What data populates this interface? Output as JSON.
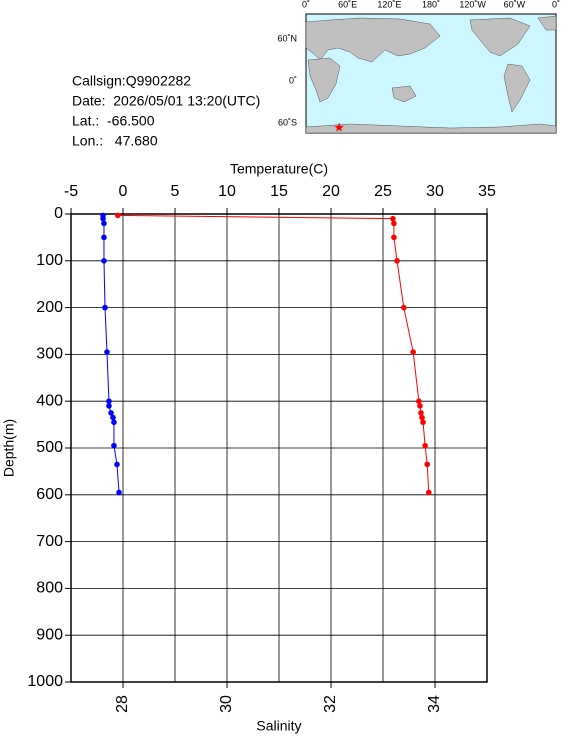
{
  "chart_data": {
    "type": "profile",
    "info": [
      "Callsign:Q9902282",
      "Date:  2026/05/01 13:20(UTC)",
      "Lat.:  -66.500",
      "Lon.:   47.680"
    ],
    "x_label": "Temperature(C)",
    "x2_label": "Salinity",
    "y_label": "Depth(m)",
    "xlim": [
      -5,
      35
    ],
    "xticks": [
      -5,
      0,
      5,
      10,
      15,
      20,
      25,
      30,
      35
    ],
    "x2lim": [
      27,
      35
    ],
    "x2ticks": [
      28,
      30,
      32,
      34
    ],
    "ylim": [
      0,
      1000
    ],
    "yticks": [
      0,
      100,
      200,
      300,
      400,
      500,
      600,
      700,
      800,
      900,
      1000
    ],
    "grid": true,
    "depth": [
      3,
      10,
      20,
      50,
      100,
      200,
      295,
      400,
      410,
      425,
      435,
      445,
      495,
      535,
      595
    ],
    "series": [
      {
        "color": "#0000ff",
        "axis": "x",
        "values": [
          -1.92,
          -1.92,
          -1.83,
          -1.83,
          -1.83,
          -1.73,
          -1.54,
          -1.35,
          -1.35,
          -1.15,
          -0.96,
          -0.87,
          -0.87,
          -0.58,
          -0.38
        ]
      },
      {
        "color": "#ff0000",
        "axis": "x2",
        "values": [
          27.9,
          33.19,
          33.21,
          33.21,
          33.27,
          33.4,
          33.58,
          33.69,
          33.71,
          33.73,
          33.75,
          33.77,
          33.81,
          33.85,
          33.88
        ]
      }
    ],
    "map": {
      "lon_ticks": [
        {
          "value": 0,
          "label": "0˚"
        },
        {
          "value": 60,
          "label": "60˚E"
        },
        {
          "value": 120,
          "label": "120˚E"
        },
        {
          "value": 180,
          "label": "180˚"
        },
        {
          "value": 240,
          "label": "120˚W"
        },
        {
          "value": 300,
          "label": "60˚W"
        },
        {
          "value": 360,
          "label": "0˚"
        }
      ],
      "lat_ticks": [
        {
          "value": 60,
          "label": "60˚N"
        },
        {
          "value": 0,
          "label": "0˚"
        },
        {
          "value": -60,
          "label": "60˚S"
        }
      ],
      "station": {
        "lon": 47.68,
        "lat": -66.5
      }
    }
  }
}
